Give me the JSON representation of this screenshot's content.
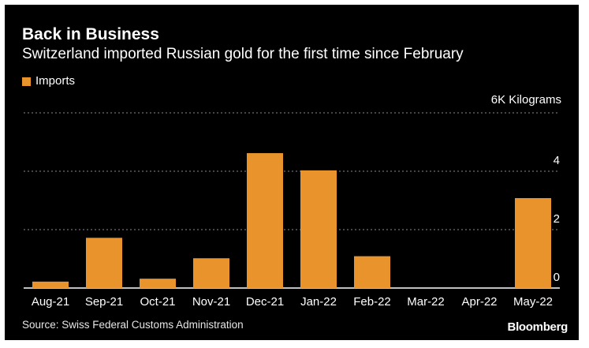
{
  "header": {
    "title": "Back in Business",
    "subtitle": "Switzerland imported Russian gold for the first time since February"
  },
  "legend": {
    "label": "Imports"
  },
  "footer": {
    "source": "Source: Swiss Federal Customs Administration",
    "logo": "Bloomberg"
  },
  "chart_data": {
    "type": "bar",
    "categories": [
      "Aug-21",
      "Sep-21",
      "Oct-21",
      "Nov-21",
      "Dec-21",
      "Jan-22",
      "Feb-22",
      "Mar-22",
      "Apr-22",
      "May-22"
    ],
    "series": [
      {
        "name": "Imports",
        "values": [
          0.22,
          1.72,
          0.32,
          1.02,
          4.62,
          4.03,
          1.09,
          0.0,
          0.0,
          3.08
        ]
      }
    ],
    "ylim": [
      0,
      6
    ],
    "yticks": [
      {
        "value": 0,
        "label": "0"
      },
      {
        "value": 2,
        "label": "2"
      },
      {
        "value": 4,
        "label": "4"
      },
      {
        "value": 6,
        "label": "6K Kilograms"
      }
    ],
    "grid": true,
    "legend_position": "top-left",
    "colors": {
      "bar": "#e8932c",
      "grid": "#8a8a8a",
      "baseline": "#ffffff"
    }
  }
}
